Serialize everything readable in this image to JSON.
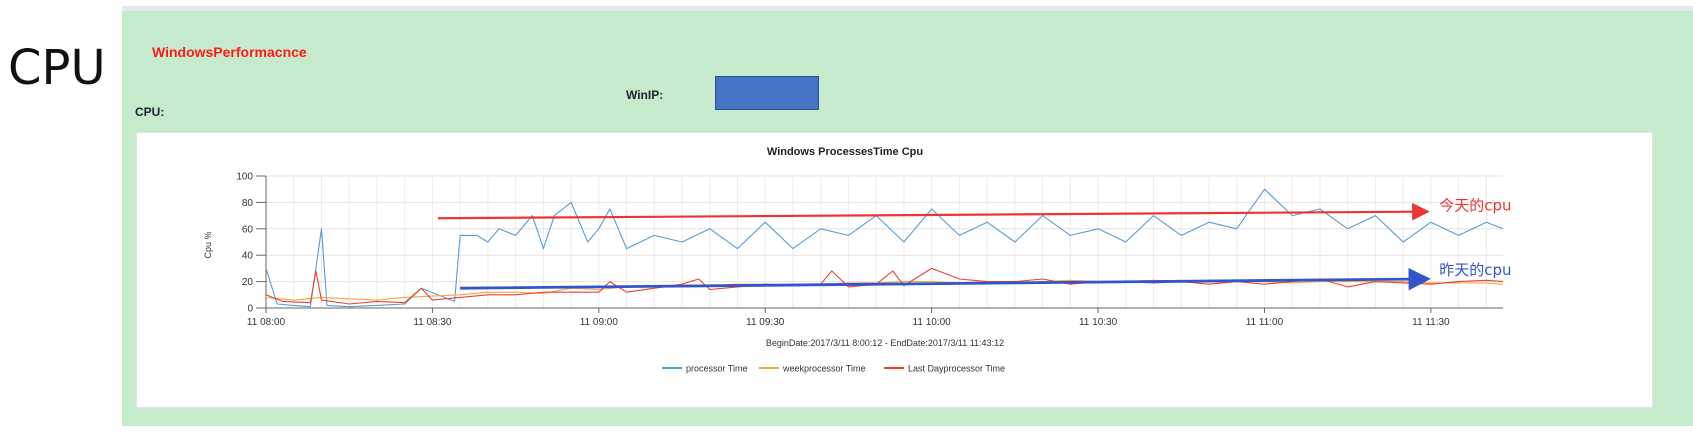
{
  "side_label": "CPU",
  "panel": {
    "title": "WindowsPerformacnce",
    "winip_label": "WinIP:",
    "cpu_label": "CPU:"
  },
  "colors": {
    "panel_bg": "#c6ebcc",
    "title": "#ff1a1a",
    "ip_box": "#4472c4",
    "processor": "#5b9bd5",
    "week": "#f4a548",
    "lastday": "#e8452c",
    "annotation_red": "#ee3333",
    "annotation_blue": "#3355cc"
  },
  "chart_data": {
    "type": "line",
    "title": "Windows ProcessesTime Cpu",
    "ylabel": "Cpu %",
    "xlabel": "BeginDate:2017/3/11 8:00:12 - EndDate:2017/3/11 11:43:12",
    "ylim": [
      0,
      100
    ],
    "yticks": [
      "0",
      "20",
      "40",
      "60",
      "80",
      "100"
    ],
    "xticks": [
      "11 08:00",
      "11 08:30",
      "11 09:00",
      "11 09:30",
      "11 10:00",
      "11 10:30",
      "11 11:00",
      "11 11:30"
    ],
    "x_start": "11 08:00",
    "x_end": "11 11:43",
    "grid": true,
    "legend_position": "bottom",
    "series": [
      {
        "name": "processor Time",
        "values": [
          [
            0,
            30
          ],
          [
            2,
            3
          ],
          [
            5,
            2
          ],
          [
            8,
            1
          ],
          [
            10,
            60
          ],
          [
            11,
            2
          ],
          [
            15,
            1
          ],
          [
            20,
            2
          ],
          [
            25,
            3
          ],
          [
            28,
            15
          ],
          [
            34,
            5
          ],
          [
            35,
            55
          ],
          [
            38,
            55
          ],
          [
            40,
            50
          ],
          [
            42,
            60
          ],
          [
            45,
            55
          ],
          [
            48,
            70
          ],
          [
            50,
            45
          ],
          [
            52,
            70
          ],
          [
            55,
            80
          ],
          [
            58,
            50
          ],
          [
            60,
            60
          ],
          [
            62,
            75
          ],
          [
            65,
            45
          ],
          [
            70,
            55
          ],
          [
            75,
            50
          ],
          [
            80,
            60
          ],
          [
            85,
            45
          ],
          [
            90,
            65
          ],
          [
            95,
            45
          ],
          [
            100,
            60
          ],
          [
            105,
            55
          ],
          [
            110,
            70
          ],
          [
            115,
            50
          ],
          [
            120,
            75
          ],
          [
            125,
            55
          ],
          [
            130,
            65
          ],
          [
            135,
            50
          ],
          [
            140,
            70
          ],
          [
            145,
            55
          ],
          [
            150,
            60
          ],
          [
            155,
            50
          ],
          [
            160,
            70
          ],
          [
            165,
            55
          ],
          [
            170,
            65
          ],
          [
            175,
            60
          ],
          [
            180,
            90
          ],
          [
            185,
            70
          ],
          [
            190,
            75
          ],
          [
            195,
            60
          ],
          [
            200,
            70
          ],
          [
            205,
            50
          ],
          [
            210,
            65
          ],
          [
            215,
            55
          ],
          [
            220,
            65
          ],
          [
            223,
            60
          ]
        ]
      },
      {
        "name": "weekprocessor Time",
        "values": [
          [
            0,
            8
          ],
          [
            5,
            6
          ],
          [
            10,
            8
          ],
          [
            15,
            7
          ],
          [
            20,
            6
          ],
          [
            25,
            8
          ],
          [
            30,
            9
          ],
          [
            35,
            10
          ],
          [
            40,
            12
          ],
          [
            45,
            12
          ],
          [
            50,
            11
          ],
          [
            55,
            15
          ],
          [
            60,
            14
          ],
          [
            65,
            16
          ],
          [
            70,
            17
          ],
          [
            75,
            16
          ],
          [
            80,
            17
          ],
          [
            85,
            18
          ],
          [
            90,
            18
          ],
          [
            95,
            17
          ],
          [
            100,
            18
          ],
          [
            105,
            19
          ],
          [
            110,
            19
          ],
          [
            115,
            20
          ],
          [
            120,
            20
          ],
          [
            125,
            19
          ],
          [
            130,
            20
          ],
          [
            135,
            19
          ],
          [
            140,
            20
          ],
          [
            145,
            21
          ],
          [
            150,
            20
          ],
          [
            155,
            20
          ],
          [
            160,
            21
          ],
          [
            165,
            20
          ],
          [
            170,
            20
          ],
          [
            175,
            21
          ],
          [
            180,
            20
          ],
          [
            185,
            19
          ],
          [
            190,
            20
          ],
          [
            195,
            20
          ],
          [
            200,
            20
          ],
          [
            205,
            20
          ],
          [
            210,
            19
          ],
          [
            215,
            19
          ],
          [
            220,
            19
          ],
          [
            223,
            18
          ]
        ]
      },
      {
        "name": "Last Dayprocessor Time",
        "values": [
          [
            0,
            10
          ],
          [
            3,
            5
          ],
          [
            8,
            4
          ],
          [
            9,
            28
          ],
          [
            10,
            6
          ],
          [
            15,
            3
          ],
          [
            20,
            5
          ],
          [
            25,
            4
          ],
          [
            28,
            15
          ],
          [
            30,
            6
          ],
          [
            35,
            8
          ],
          [
            40,
            10
          ],
          [
            45,
            10
          ],
          [
            50,
            12
          ],
          [
            55,
            12
          ],
          [
            60,
            12
          ],
          [
            62,
            20
          ],
          [
            65,
            12
          ],
          [
            70,
            15
          ],
          [
            75,
            18
          ],
          [
            78,
            22
          ],
          [
            80,
            14
          ],
          [
            85,
            16
          ],
          [
            90,
            18
          ],
          [
            95,
            17
          ],
          [
            100,
            18
          ],
          [
            102,
            28
          ],
          [
            105,
            16
          ],
          [
            110,
            18
          ],
          [
            113,
            28
          ],
          [
            115,
            17
          ],
          [
            120,
            30
          ],
          [
            125,
            22
          ],
          [
            130,
            20
          ],
          [
            135,
            20
          ],
          [
            140,
            22
          ],
          [
            145,
            18
          ],
          [
            150,
            20
          ],
          [
            155,
            20
          ],
          [
            160,
            19
          ],
          [
            165,
            20
          ],
          [
            170,
            18
          ],
          [
            175,
            20
          ],
          [
            180,
            18
          ],
          [
            185,
            20
          ],
          [
            190,
            22
          ],
          [
            195,
            16
          ],
          [
            200,
            20
          ],
          [
            205,
            19
          ],
          [
            210,
            18
          ],
          [
            215,
            20
          ],
          [
            220,
            21
          ],
          [
            223,
            20
          ]
        ]
      }
    ],
    "annotations": [
      {
        "text": "今天的cpu",
        "color": "red"
      },
      {
        "text": "昨天的cpu",
        "color": "blue"
      }
    ]
  }
}
